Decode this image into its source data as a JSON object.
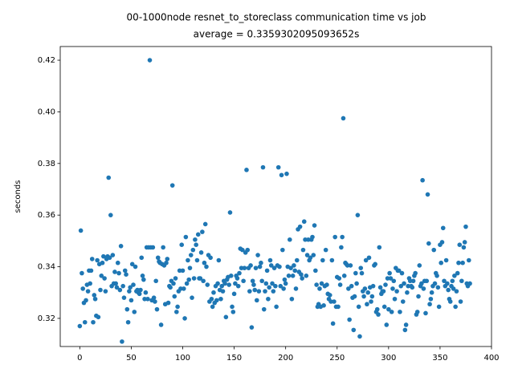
{
  "chart_data": {
    "type": "scatter",
    "title": "00-1000node resnet_to_storeclass communication time vs job",
    "subtitle": "average = 0.3359302095093652s",
    "y_label": "seconds",
    "color": "#1f77b4",
    "xlim": [
      -19,
      400
    ],
    "xticks": [
      0,
      50,
      100,
      150,
      200,
      250,
      300,
      350,
      400
    ],
    "ylim": [
      0.3091,
      0.4253
    ],
    "yticks": [
      0.32,
      0.34,
      0.36,
      0.38,
      {
        "value": 0.4,
        "label": "0.40"
      },
      0.42
    ],
    "x": [
      0,
      1,
      2,
      3,
      4,
      5,
      6,
      7,
      8,
      9,
      10,
      11,
      12,
      13,
      14,
      15,
      16,
      17,
      18,
      19,
      20,
      21,
      22,
      23,
      24,
      25,
      26,
      27,
      28,
      29,
      30,
      31,
      32,
      33,
      34,
      35,
      36,
      37,
      38,
      39,
      40,
      41,
      42,
      43,
      44,
      45,
      46,
      47,
      48,
      49,
      50,
      51,
      52,
      53,
      54,
      55,
      56,
      57,
      58,
      59,
      60,
      61,
      62,
      63,
      64,
      65,
      66,
      67,
      68,
      69,
      70,
      71,
      72,
      73,
      74,
      75,
      76,
      77,
      78,
      79,
      80,
      81,
      82,
      83,
      84,
      85,
      86,
      87,
      88,
      89,
      90,
      91,
      92,
      93,
      94,
      95,
      96,
      97,
      98,
      99,
      100,
      101,
      102,
      103,
      104,
      105,
      106,
      107,
      108,
      109,
      110,
      111,
      112,
      113,
      114,
      115,
      116,
      117,
      118,
      119,
      120,
      121,
      122,
      123,
      124,
      125,
      126,
      127,
      128,
      129,
      130,
      131,
      132,
      133,
      134,
      135,
      136,
      137,
      138,
      139,
      140,
      141,
      142,
      143,
      144,
      145,
      146,
      147,
      148,
      149,
      150,
      151,
      152,
      153,
      154,
      155,
      156,
      157,
      158,
      159,
      160,
      161,
      162,
      163,
      164,
      165,
      166,
      167,
      168,
      169,
      170,
      171,
      172,
      173,
      174,
      175,
      176,
      177,
      178,
      179,
      180,
      181,
      182,
      183,
      184,
      185,
      186,
      187,
      188,
      189,
      190,
      191,
      192,
      193,
      194,
      195,
      196,
      197,
      198,
      199,
      200,
      201,
      202,
      203,
      204,
      205,
      206,
      207,
      208,
      209,
      210,
      211,
      212,
      213,
      214,
      215,
      216,
      217,
      218,
      219,
      220,
      221,
      222,
      223,
      224,
      225,
      226,
      227,
      228,
      229,
      230,
      231,
      232,
      233,
      234,
      235,
      236,
      237,
      238,
      239,
      240,
      241,
      242,
      243,
      244,
      245,
      246,
      247,
      248,
      249,
      250,
      251,
      252,
      253,
      254,
      255,
      256,
      257,
      258,
      259,
      260,
      261,
      262,
      263,
      264,
      265,
      266,
      267,
      268,
      269,
      270,
      271,
      272,
      273,
      274,
      275,
      276,
      277,
      278,
      279,
      280,
      281,
      282,
      283,
      284,
      285,
      286,
      287,
      288,
      289,
      290,
      291,
      292,
      293,
      294,
      295,
      296,
      297,
      298,
      299,
      300,
      301,
      302,
      303,
      304,
      305,
      306,
      307,
      308,
      309,
      310,
      311,
      312,
      313,
      314,
      315,
      316,
      317,
      318,
      319,
      320,
      321,
      322,
      323,
      324,
      325,
      326,
      327,
      328,
      329,
      330,
      331,
      332,
      333,
      334,
      335,
      336,
      337,
      338,
      339,
      340,
      341,
      342,
      343,
      344,
      345,
      346,
      347,
      348,
      349,
      350,
      351,
      352,
      353,
      354,
      355,
      356,
      357,
      358,
      359,
      360,
      361,
      362,
      363,
      364,
      365,
      366,
      367,
      368,
      369,
      370,
      371,
      372,
      373,
      374,
      375,
      376,
      377,
      378,
      379
    ],
    "values": [
      0.317,
      0.354,
      0.3375,
      0.3315,
      0.326,
      0.3185,
      0.327,
      0.333,
      0.3305,
      0.3385,
      0.3335,
      0.3385,
      0.343,
      0.3185,
      0.329,
      0.3275,
      0.321,
      0.3425,
      0.3205,
      0.341,
      0.331,
      0.3365,
      0.3415,
      0.344,
      0.3355,
      0.3305,
      0.343,
      0.344,
      0.3745,
      0.3435,
      0.36,
      0.3325,
      0.3445,
      0.3335,
      0.338,
      0.3335,
      0.332,
      0.3415,
      0.3375,
      0.331,
      0.348,
      0.311,
      0.3325,
      0.328,
      0.3385,
      0.337,
      0.3235,
      0.3185,
      0.3305,
      0.332,
      0.327,
      0.341,
      0.333,
      0.3225,
      0.34,
      0.3305,
      0.331,
      0.33,
      0.3295,
      0.331,
      0.3435,
      0.3365,
      0.335,
      0.3275,
      0.33,
      0.3475,
      0.3275,
      0.3475,
      0.42,
      0.3475,
      0.327,
      0.3475,
      0.328,
      0.3265,
      0.3345,
      0.3235,
      0.3435,
      0.342,
      0.3415,
      0.3175,
      0.341,
      0.3475,
      0.3405,
      0.3255,
      0.3415,
      0.343,
      0.326,
      0.3325,
      0.332,
      0.3345,
      0.3715,
      0.3335,
      0.3285,
      0.3355,
      0.3225,
      0.3245,
      0.3305,
      0.3385,
      0.3315,
      0.3485,
      0.3385,
      0.3315,
      0.32,
      0.3515,
      0.3335,
      0.3425,
      0.335,
      0.3395,
      0.3445,
      0.328,
      0.3465,
      0.3355,
      0.3505,
      0.3485,
      0.3425,
      0.3525,
      0.3355,
      0.3355,
      0.3455,
      0.3535,
      0.3345,
      0.3415,
      0.3565,
      0.34,
      0.333,
      0.3445,
      0.3265,
      0.3435,
      0.3275,
      0.3245,
      0.33,
      0.326,
      0.3325,
      0.327,
      0.3335,
      0.3425,
      0.331,
      0.3275,
      0.3325,
      0.3305,
      0.3345,
      0.3335,
      0.3205,
      0.335,
      0.336,
      0.333,
      0.361,
      0.3365,
      0.3245,
      0.3225,
      0.3295,
      0.3335,
      0.3365,
      0.3355,
      0.3325,
      0.3375,
      0.347,
      0.3395,
      0.3465,
      0.3345,
      0.3395,
      0.3455,
      0.3775,
      0.3465,
      0.3395,
      0.3305,
      0.3405,
      0.3165,
      0.3345,
      0.333,
      0.331,
      0.3395,
      0.327,
      0.3445,
      0.3305,
      0.34,
      0.3415,
      0.3345,
      0.3785,
      0.3235,
      0.3305,
      0.3335,
      0.3385,
      0.3275,
      0.332,
      0.3425,
      0.3405,
      0.3335,
      0.3305,
      0.3395,
      0.3325,
      0.3245,
      0.3405,
      0.3785,
      0.34,
      0.3325,
      0.3755,
      0.3465,
      0.3315,
      0.335,
      0.3335,
      0.376,
      0.34,
      0.3365,
      0.3505,
      0.3395,
      0.3275,
      0.3365,
      0.3405,
      0.3385,
      0.3315,
      0.3425,
      0.3545,
      0.338,
      0.3555,
      0.337,
      0.3355,
      0.3465,
      0.3575,
      0.3505,
      0.3365,
      0.3445,
      0.3505,
      0.3425,
      0.3435,
      0.3505,
      0.3515,
      0.3445,
      0.356,
      0.3385,
      0.333,
      0.3245,
      0.3255,
      0.3315,
      0.3245,
      0.3335,
      0.3425,
      0.325,
      0.3325,
      0.3465,
      0.333,
      0.3295,
      0.3275,
      0.329,
      0.3265,
      0.3425,
      0.318,
      0.3265,
      0.3515,
      0.3245,
      0.336,
      0.3245,
      0.3355,
      0.333,
      0.3475,
      0.3515,
      0.3975,
      0.3365,
      0.3415,
      0.341,
      0.3405,
      0.3315,
      0.3195,
      0.3405,
      0.3325,
      0.328,
      0.3155,
      0.3285,
      0.3375,
      0.3335,
      0.36,
      0.3245,
      0.313,
      0.3395,
      0.3375,
      0.3305,
      0.3285,
      0.3315,
      0.3425,
      0.3255,
      0.33,
      0.3435,
      0.332,
      0.3265,
      0.3285,
      0.3325,
      0.3405,
      0.341,
      0.3225,
      0.3235,
      0.3215,
      0.3475,
      0.332,
      0.3295,
      0.3305,
      0.3305,
      0.3245,
      0.333,
      0.3175,
      0.3355,
      0.3235,
      0.3375,
      0.3355,
      0.3225,
      0.3315,
      0.3345,
      0.3275,
      0.3395,
      0.3305,
      0.3385,
      0.3385,
      0.3225,
      0.3325,
      0.3375,
      0.3265,
      0.3335,
      0.3155,
      0.3175,
      0.33,
      0.3325,
      0.3355,
      0.3345,
      0.3325,
      0.332,
      0.3345,
      0.3365,
      0.3375,
      0.3215,
      0.3225,
      0.3285,
      0.3405,
      0.3325,
      0.3335,
      0.3735,
      0.3315,
      0.3345,
      0.322,
      0.3345,
      0.368,
      0.349,
      0.3255,
      0.3275,
      0.33,
      0.3325,
      0.3465,
      0.3335,
      0.3375,
      0.3365,
      0.332,
      0.3245,
      0.3485,
      0.3415,
      0.3495,
      0.355,
      0.3345,
      0.3325,
      0.3425,
      0.3335,
      0.331,
      0.3275,
      0.3265,
      0.3325,
      0.3345,
      0.3315,
      0.3365,
      0.3245,
      0.3305,
      0.3375,
      0.3415,
      0.3485,
      0.3265,
      0.3345,
      0.3415,
      0.3475,
      0.3495,
      0.3555,
      0.3335,
      0.3325,
      0.3425,
      0.3335
    ]
  }
}
